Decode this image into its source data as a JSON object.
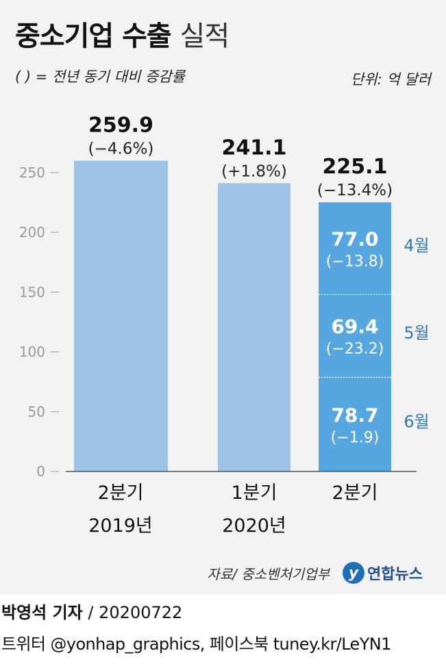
{
  "header": {
    "title_bold": "중소기업 수출",
    "title_light": "실적",
    "note": "( ) = 전년 동기 대비 증감률",
    "unit": "단위: 억 달러"
  },
  "footer": {
    "source": "자료/ 중소벤처기업부",
    "logo_text": "연합뉴스",
    "logo_mark": "y",
    "reporter": "박영석 기자",
    "date_sep": "/",
    "date": "20200722",
    "social": "트위터 @yonhap_graphics, 페이스북 tuney.kr/LeYN1"
  },
  "colors": {
    "bar_light": "#9dc3e6",
    "bar_dark": "#56a7df",
    "month_label": "#2f78b5",
    "axis": "#999999"
  },
  "chart_data": {
    "type": "bar",
    "ylim": [
      0,
      250
    ],
    "yticks": [
      0,
      50,
      100,
      150,
      200,
      250
    ],
    "categories": [
      {
        "line1": "2분기",
        "line2": "2019년"
      },
      {
        "line1": "1분기",
        "line2": "2020년"
      },
      {
        "line1": "2분기",
        "line2": ""
      }
    ],
    "bars": [
      {
        "value": 259.9,
        "value_label": "259.9",
        "change_label": "(−4.6%)",
        "style": "light"
      },
      {
        "value": 241.1,
        "value_label": "241.1",
        "change_label": "(+1.8%)",
        "style": "light"
      },
      {
        "value": 225.1,
        "value_label": "225.1",
        "change_label": "(−13.4%)",
        "style": "dark"
      }
    ],
    "stack_segments": [
      {
        "month": "6월",
        "value": 78.7,
        "value_label": "78.7",
        "change_label": "(−1.9)"
      },
      {
        "month": "5월",
        "value": 69.4,
        "value_label": "69.4",
        "change_label": "(−23.2)"
      },
      {
        "month": "4월",
        "value": 77.0,
        "value_label": "77.0",
        "change_label": "(−13.8)"
      }
    ]
  }
}
